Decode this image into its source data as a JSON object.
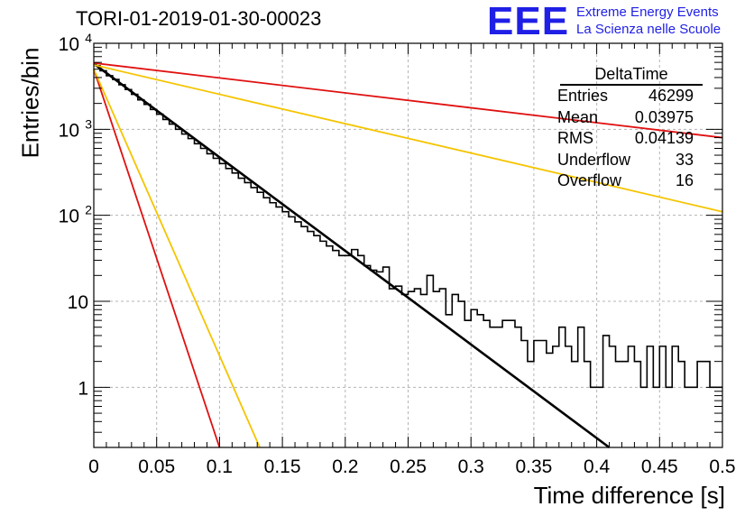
{
  "run_title": "TORI-01-2019-01-30-00023",
  "logo": {
    "mark": "EEE",
    "line1": "Extreme Energy Events",
    "line2": "La Scienza nelle Scuole"
  },
  "stats": {
    "title": "DeltaTime",
    "rows": [
      {
        "label": "Entries",
        "value": "46299"
      },
      {
        "label": "Mean",
        "value": "0.03975"
      },
      {
        "label": "RMS",
        "value": "0.04139"
      },
      {
        "label": "Underflow",
        "value": "33"
      },
      {
        "label": "Overflow",
        "value": "16"
      }
    ]
  },
  "colors": {
    "histogram": "#000000",
    "fit": "#000000",
    "red_curves": "#e01010",
    "orange_curves": "#f5c400",
    "grid": "#b4b4b4",
    "logo": "#1f1fe6"
  },
  "chart_data": {
    "type": "line",
    "title": "TORI-01-2019-01-30-00023",
    "xlabel": "Time difference [s]",
    "ylabel": "Entries/bin",
    "xlim": [
      0,
      0.5
    ],
    "ylim": [
      0.2,
      10000
    ],
    "yscale": "log",
    "grid": true,
    "legend": "top-right",
    "x_ticks": [
      "0",
      "0.05",
      "0.1",
      "0.15",
      "0.2",
      "0.25",
      "0.3",
      "0.35",
      "0.4",
      "0.45",
      "0.5"
    ],
    "y_ticks": [
      {
        "value": 1,
        "label": "1"
      },
      {
        "value": 10,
        "label": "10"
      },
      {
        "value": 100,
        "label": "10^2"
      },
      {
        "value": 1000,
        "label": "10^3"
      },
      {
        "value": 10000,
        "label": "10^4"
      }
    ],
    "histogram": {
      "bin_width": 0.005,
      "values": [
        5500,
        4800,
        4200,
        3800,
        3300,
        2900,
        2550,
        2200,
        1950,
        1700,
        1500,
        1300,
        1150,
        1000,
        880,
        780,
        680,
        600,
        520,
        460,
        400,
        350,
        310,
        270,
        240,
        210,
        185,
        160,
        140,
        125,
        110,
        96,
        84,
        74,
        65,
        58,
        50,
        44,
        39,
        34,
        34,
        40,
        34,
        26,
        23,
        22,
        25,
        14,
        15,
        12,
        13,
        14,
        12,
        20,
        13,
        14,
        7,
        12,
        10,
        6,
        8,
        7,
        6,
        5,
        5,
        6,
        6,
        5,
        3.5,
        2,
        3.5,
        3.5,
        2.5,
        3,
        5,
        3,
        2,
        5,
        2,
        1,
        1,
        4,
        3,
        2,
        2,
        3,
        2,
        1,
        3,
        1,
        3,
        1,
        3,
        2,
        1,
        1,
        2,
        2,
        1,
        1
      ]
    },
    "series": [
      {
        "points": [
          [
            0,
            5800
          ],
          [
            0.41,
            0.2
          ]
        ],
        "color": "#000000"
      },
      {
        "points": [
          [
            0,
            5900
          ],
          [
            0.5,
            800
          ]
        ],
        "color": "#e01010"
      },
      {
        "points": [
          [
            0,
            5600
          ],
          [
            0.5,
            110
          ]
        ],
        "color": "#f5c400"
      },
      {
        "points": [
          [
            0,
            5000
          ],
          [
            0.1,
            0.2
          ]
        ],
        "color": "#e01010"
      },
      {
        "points": [
          [
            0,
            5000
          ],
          [
            0.132,
            0.2
          ]
        ],
        "color": "#f5c400"
      }
    ]
  }
}
